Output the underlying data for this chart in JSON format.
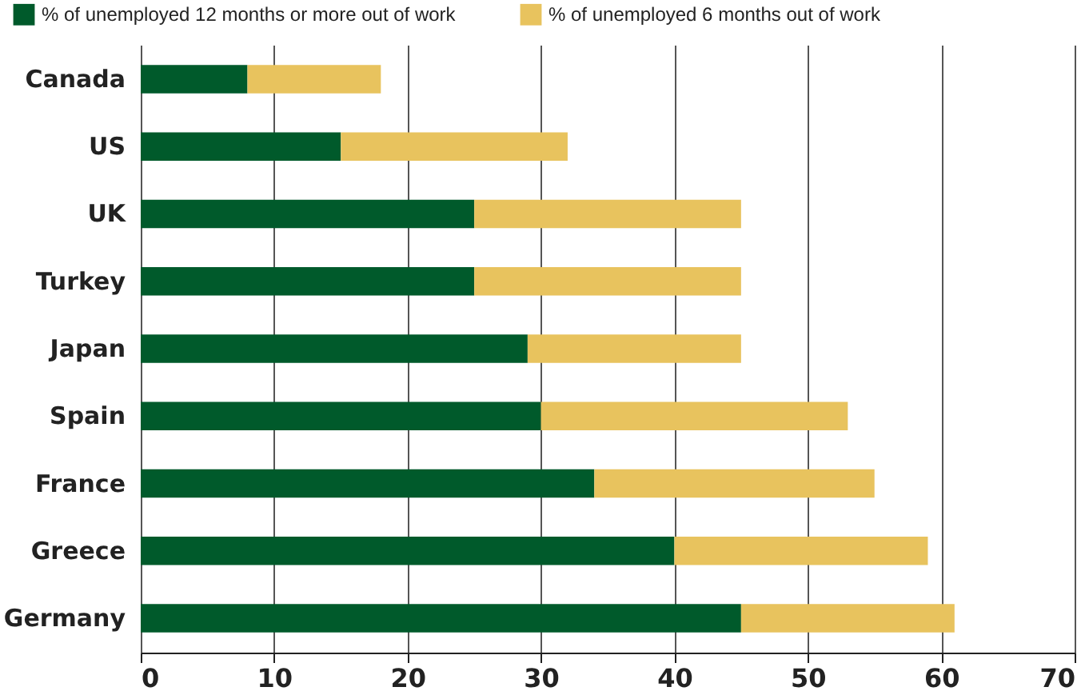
{
  "chart_data": {
    "type": "bar",
    "orientation": "horizontal",
    "stacked": true,
    "categories": [
      "Canada",
      "US",
      "UK",
      "Turkey",
      "Japan",
      "Spain",
      "France",
      "Greece",
      "Germany"
    ],
    "series": [
      {
        "name": "% of unemployed 12 months or more out of work",
        "color": "#005a2b",
        "values": [
          8,
          15,
          25,
          25,
          29,
          30,
          34,
          40,
          45
        ]
      },
      {
        "name": "% of unemployed 6 months out of work",
        "color": "#e8c35e",
        "values": [
          10,
          17,
          20,
          20,
          16,
          23,
          21,
          19,
          16
        ]
      }
    ],
    "xlim": [
      0,
      70
    ],
    "xticks": [
      0,
      10,
      20,
      30,
      40,
      50,
      60,
      70
    ],
    "grid": "x",
    "legend": "top"
  }
}
